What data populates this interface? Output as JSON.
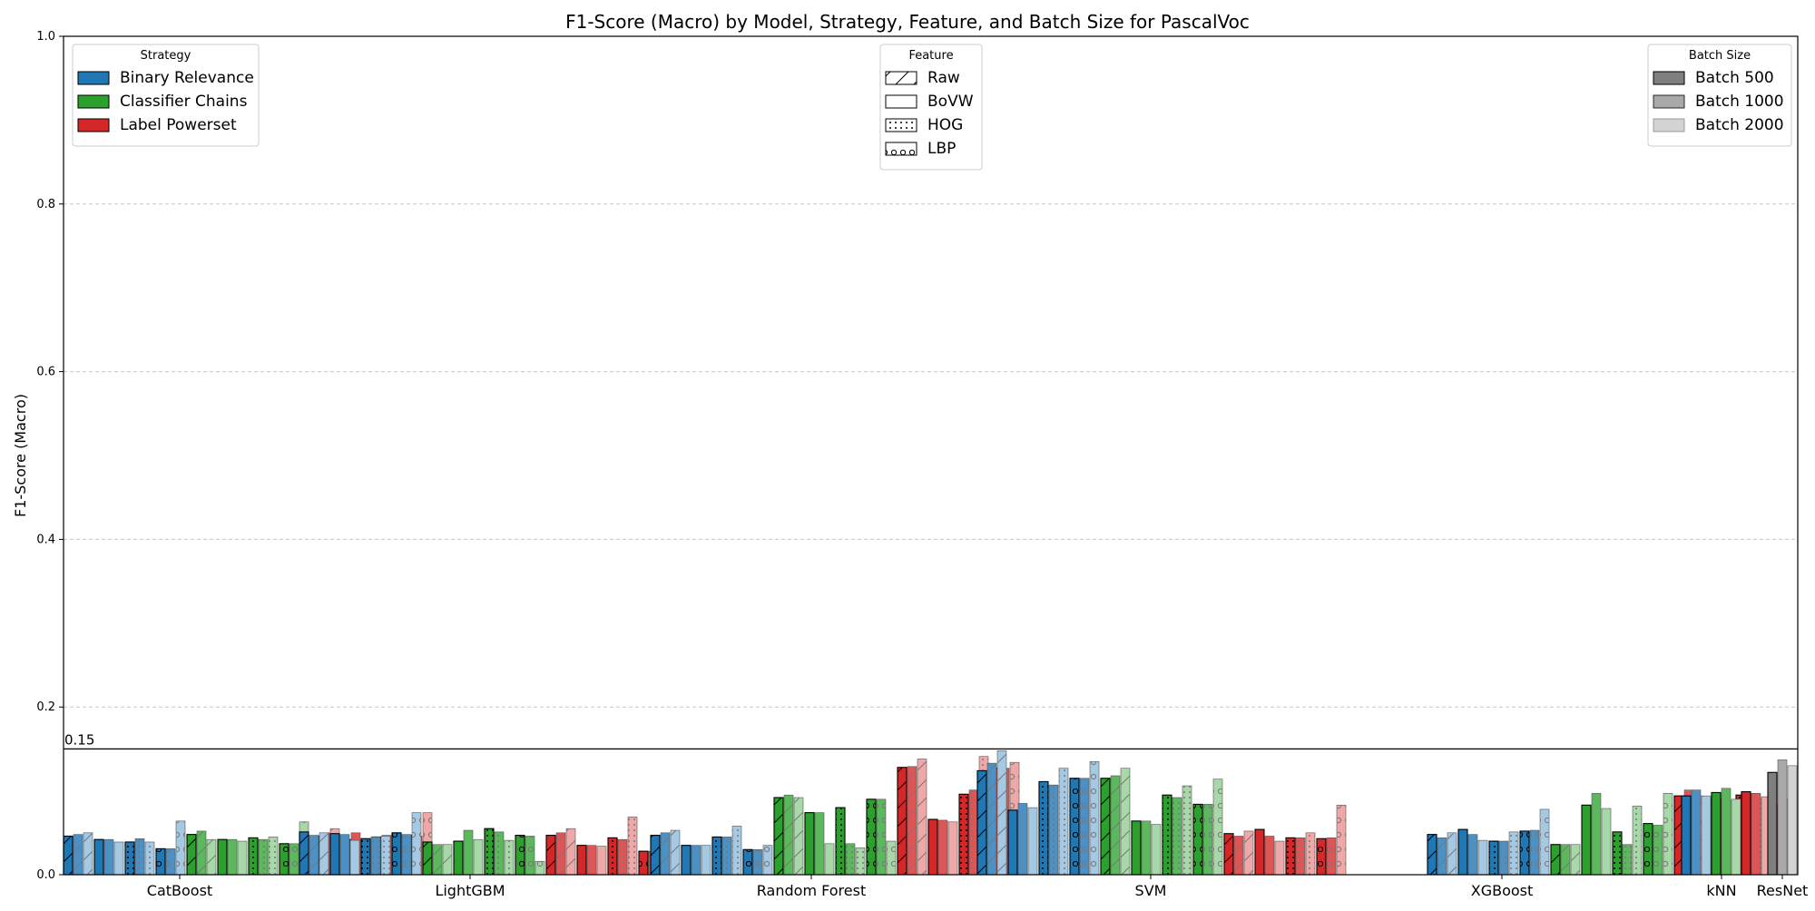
{
  "chart_data": {
    "type": "bar",
    "title": "F1-Score (Macro) by Model, Strategy, Feature, and Batch Size for PascalVoc",
    "ylabel": "F1-Score (Macro)",
    "xlabel": "",
    "ylim": [
      0,
      1.0
    ],
    "yticks": [
      "0.0",
      "0.2",
      "0.4",
      "0.6",
      "0.8",
      "1.0"
    ],
    "reference_line": {
      "value": 0.15,
      "label": "0.15"
    },
    "grid": "y-dashed",
    "colors": {
      "Binary Relevance": [
        "#1f77b4",
        "#4c90c4",
        "#a5c8e3"
      ],
      "Classifier Chains": [
        "#2ca02c",
        "#5cb85c",
        "#a8d8a8"
      ],
      "Label Powerset": [
        "#d62728",
        "#de5556",
        "#efa8a8"
      ],
      "kNN": [
        "#1f77b4",
        "#2ca02c",
        "#d62728"
      ],
      "ResNet": [
        "#7f7f7f",
        "#a9a9a9",
        "#d3d3d3"
      ]
    },
    "legends": [
      {
        "title": "Strategy",
        "placement": "top-left",
        "entries": [
          {
            "label": "Binary Relevance",
            "color": "#1f77b4",
            "hatch": "none"
          },
          {
            "label": "Classifier Chains",
            "color": "#2ca02c",
            "hatch": "none"
          },
          {
            "label": "Label Powerset",
            "color": "#d62728",
            "hatch": "none"
          }
        ]
      },
      {
        "title": "Feature",
        "placement": "top-center",
        "entries": [
          {
            "label": "Raw",
            "color": "#ffffff",
            "hatch": "diag"
          },
          {
            "label": "BoVW",
            "color": "#ffffff",
            "hatch": "none"
          },
          {
            "label": "HOG",
            "color": "#ffffff",
            "hatch": "dots"
          },
          {
            "label": "LBP",
            "color": "#ffffff",
            "hatch": "circles"
          }
        ]
      },
      {
        "title": "Batch Size",
        "placement": "top-right",
        "entries": [
          {
            "label": "Batch 500",
            "color": "#7f7f7f",
            "hatch": "none"
          },
          {
            "label": "Batch 1000",
            "color": "#a9a9a9",
            "hatch": "none"
          },
          {
            "label": "Batch 2000",
            "color": "#d3d3d3",
            "hatch": "none"
          }
        ]
      }
    ],
    "strategies": [
      "Binary Relevance",
      "Classifier Chains",
      "Label Powerset"
    ],
    "features": [
      "Raw",
      "BoVW",
      "HOG",
      "LBP"
    ],
    "batches": [
      "Batch 500",
      "Batch 1000",
      "Batch 2000"
    ],
    "models": [
      {
        "name": "CatBoost",
        "values": [
          [
            [
              0.046,
              0.048,
              0.05
            ],
            [
              0.042,
              0.042,
              0.039
            ],
            [
              0.039,
              0.043,
              0.039
            ],
            [
              0.031,
              0.031,
              0.064
            ]
          ],
          [
            [
              0.048,
              0.052,
              0.042
            ],
            [
              0.042,
              0.042,
              0.04
            ],
            [
              0.044,
              0.042,
              0.045
            ],
            [
              0.037,
              0.037,
              0.063
            ]
          ],
          [
            [
              0.046,
              0.05,
              0.055
            ],
            [
              0.042,
              0.05,
              0.038
            ],
            [
              0.045,
              0.047,
              0.044
            ],
            [
              0.047,
              0.046,
              0.074
            ]
          ]
        ]
      },
      {
        "name": "LightGBM",
        "values": [
          [
            [
              0.051,
              0.047,
              0.05
            ],
            [
              0.049,
              0.048,
              0.041
            ],
            [
              0.043,
              0.045,
              0.046
            ],
            [
              0.05,
              0.048,
              0.074
            ]
          ],
          [
            [
              0.039,
              0.036,
              0.036
            ],
            [
              0.04,
              0.053,
              0.042
            ],
            [
              0.055,
              0.051,
              0.041
            ],
            [
              0.047,
              0.046,
              0.016
            ]
          ],
          [
            [
              0.047,
              0.05,
              0.055
            ],
            [
              0.035,
              0.035,
              0.034
            ],
            [
              0.044,
              0.042,
              0.069
            ],
            [
              0.028,
              0.028,
              0.035
            ]
          ]
        ]
      },
      {
        "name": "Random Forest",
        "values": [
          [
            [
              0.047,
              0.05,
              0.053
            ],
            [
              0.035,
              0.035,
              0.035
            ],
            [
              0.045,
              0.045,
              0.058
            ],
            [
              0.03,
              0.03,
              0.035
            ]
          ],
          [
            [
              0.092,
              0.095,
              0.092
            ],
            [
              0.074,
              0.074,
              0.037
            ],
            [
              0.08,
              0.037,
              0.032
            ],
            [
              0.09,
              0.09,
              0.04
            ]
          ],
          [
            [
              0.128,
              0.129,
              0.138
            ],
            [
              0.066,
              0.065,
              0.063
            ],
            [
              0.096,
              0.101,
              0.141
            ],
            [
              0.127,
              0.127,
              0.134
            ]
          ]
        ]
      },
      {
        "name": "SVM",
        "values": [
          [
            [
              0.124,
              0.133,
              0.148
            ],
            [
              0.077,
              0.085,
              0.08
            ],
            [
              0.111,
              0.107,
              0.127
            ],
            [
              0.115,
              0.115,
              0.135
            ]
          ],
          [
            [
              0.115,
              0.118,
              0.127
            ],
            [
              0.064,
              0.064,
              0.06
            ],
            [
              0.095,
              0.092,
              0.106
            ],
            [
              0.084,
              0.084,
              0.114
            ]
          ],
          [
            [
              0.049,
              0.046,
              0.052
            ],
            [
              0.054,
              0.046,
              0.04
            ],
            [
              0.044,
              0.044,
              0.05
            ],
            [
              0.043,
              0.044,
              0.083
            ]
          ]
        ]
      },
      {
        "name": "XGBoost",
        "values": [
          [
            [
              0.048,
              0.044,
              0.05
            ],
            [
              0.054,
              0.048,
              0.041
            ],
            [
              0.04,
              0.04,
              0.051
            ],
            [
              0.052,
              0.053,
              0.078
            ]
          ],
          [
            [
              0.036,
              0.036,
              0.036
            ],
            [
              0.083,
              0.097,
              0.079
            ],
            [
              0.051,
              0.036,
              0.082
            ],
            [
              0.061,
              0.059,
              0.097
            ]
          ],
          [
            [
              0.094,
              0.101,
              0.094
            ],
            [
              0.091,
              0.091,
              0.088
            ],
            [
              0.095,
              0.097,
              0.09
            ],
            [
              0.084,
              0.084,
              0.09
            ]
          ]
        ]
      }
    ],
    "knn": {
      "name": "kNN",
      "values": [
        [
          0.094,
          0.101,
          0.094
        ],
        [
          0.098,
          0.103,
          0.09
        ],
        [
          0.099,
          0.097,
          0.093
        ]
      ]
    },
    "resnet": {
      "name": "ResNet",
      "values": [
        0.122,
        0.137,
        0.13
      ]
    }
  }
}
